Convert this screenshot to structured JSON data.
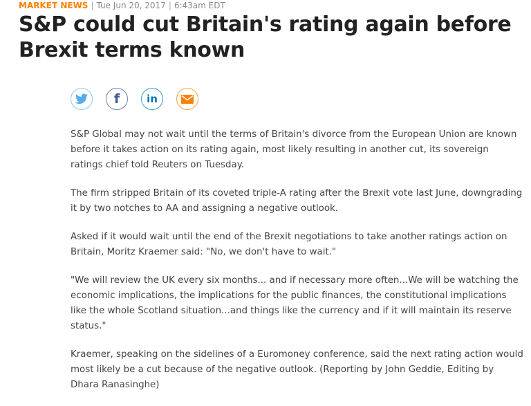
{
  "meta": {
    "category": "MARKET NEWS",
    "date": "Tue Jun 20, 2017",
    "time": "6:43am EDT"
  },
  "headline": "S&P could cut Britain's rating again before Brexit terms known",
  "share": [
    {
      "name": "twitter",
      "icon": "twitter-icon",
      "color": "#55acee"
    },
    {
      "name": "facebook",
      "icon": "facebook-icon",
      "color": "#3b5998"
    },
    {
      "name": "linkedin",
      "icon": "linkedin-icon",
      "color": "#0077b5"
    },
    {
      "name": "email",
      "icon": "email-icon",
      "color": "#ff8000"
    }
  ],
  "paragraphs": [
    "S&P Global may not wait until the terms of Britain's divorce from the European Union are known before it takes action on its rating again, most likely resulting in another cut, its sovereign ratings chief told Reuters on Tuesday.",
    "The firm stripped Britain of its coveted triple-A rating after the Brexit vote last June, downgrading it by two notches to AA and assigning a negative outlook.",
    "Asked if it would wait until the end of the Brexit negotiations to take another ratings action on Britain, Moritz Kraemer said: \"No, we don't have to wait.\"",
    "\"We will review the UK every six months... and if necessary more often...We will be watching the economic implications, the implications for the public finances, the constitutional implications like the whole Scotland situation...and things like the currency and if it will maintain its reserve status.\"",
    "Kraemer, speaking on the sidelines of a Euromoney conference, said the next rating action would most likely be a cut because of the negative outlook. (Reporting by John Geddie, Editing by Dhara Ranasinghe)"
  ]
}
